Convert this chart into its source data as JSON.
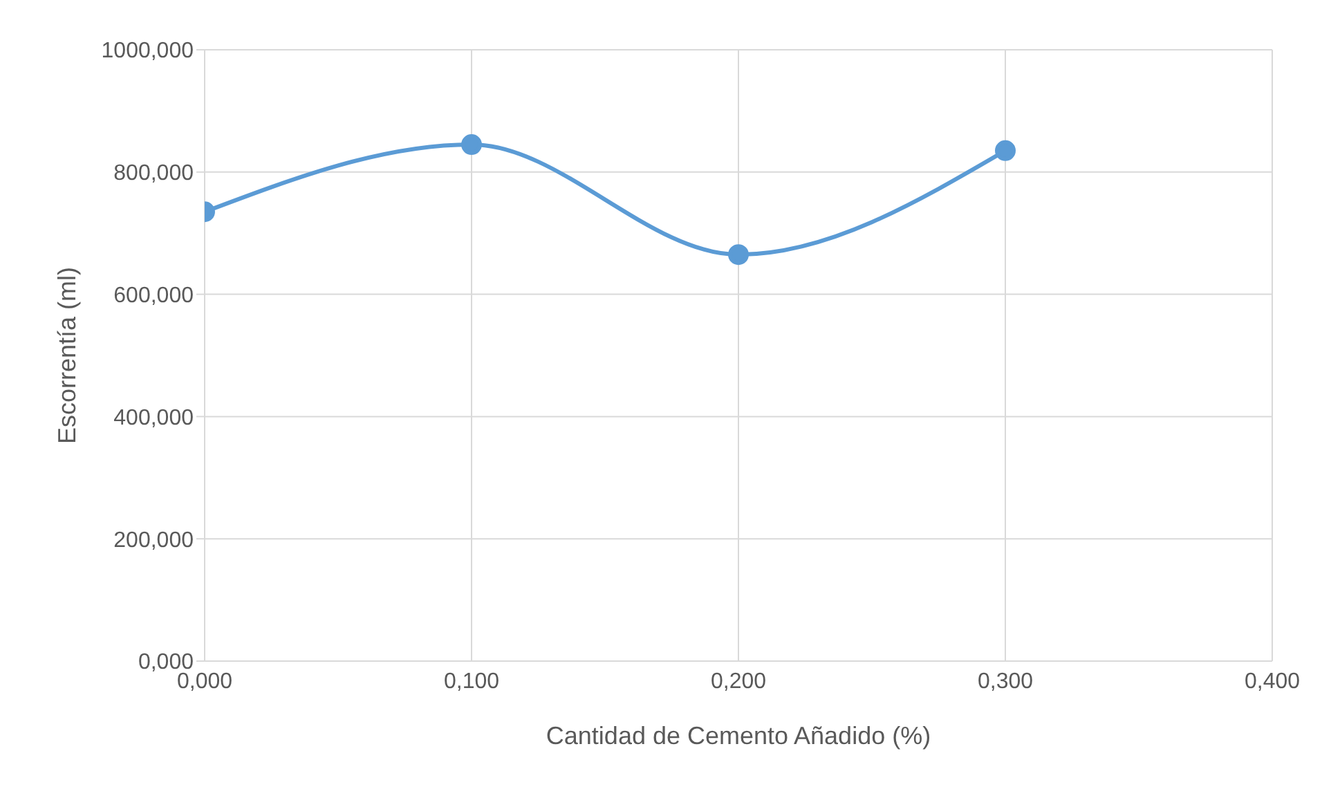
{
  "chart_data": {
    "type": "line",
    "xlabel": "Cantidad de Cemento Añadido (%)",
    "ylabel": "Escorrentía (ml)",
    "x": [
      0,
      0.1,
      0.2,
      0.3
    ],
    "series": [
      {
        "color": "#5b9bd5",
        "values": [
          735,
          845,
          665,
          835
        ]
      }
    ],
    "xlim": [
      0,
      0.4
    ],
    "xticks": [
      {
        "value": 0,
        "label": "0,000"
      },
      {
        "value": 0.1,
        "label": "0,100"
      },
      {
        "value": 0.2,
        "label": "0,200"
      },
      {
        "value": 0.3,
        "label": "0,300"
      },
      {
        "value": 0.4,
        "label": "0,400"
      }
    ],
    "ylim": [
      0,
      1000
    ],
    "yticks": [
      {
        "value": 0,
        "label": "0,000"
      },
      {
        "value": 200,
        "label": "200,000"
      },
      {
        "value": 400,
        "label": "400,000"
      },
      {
        "value": 600,
        "label": "600,000"
      },
      {
        "value": 800,
        "label": "800,000"
      },
      {
        "value": 1000,
        "label": "1000,000"
      }
    ],
    "grid": true,
    "marker": "circle",
    "line_style": "solid",
    "legend": false
  }
}
